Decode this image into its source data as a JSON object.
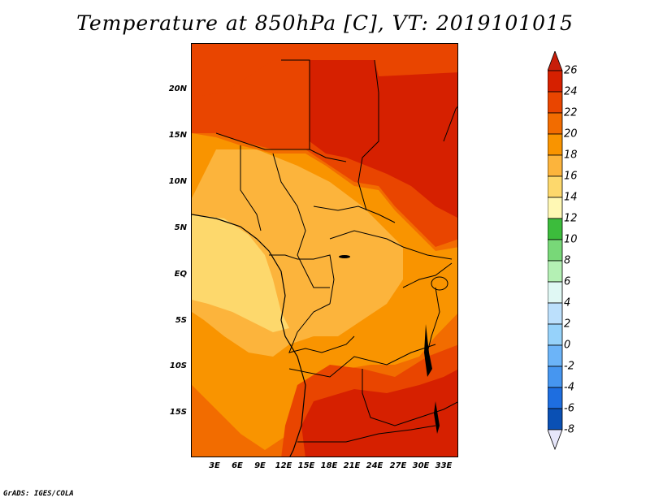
{
  "title": "Temperature at 850hPa [C], VT: 2019101015",
  "credit": "GrADS: IGES/COLA",
  "map": {
    "lat_labels": [
      "20N",
      "15N",
      "10N",
      "5N",
      "EQ",
      "5S",
      "10S",
      "15S"
    ],
    "lon_labels": [
      "3E",
      "6E",
      "9E",
      "12E",
      "15E",
      "18E",
      "21E",
      "24E",
      "27E",
      "30E",
      "33E"
    ],
    "lat_range": [
      -20,
      25
    ],
    "lon_range": [
      0,
      35
    ]
  },
  "colorbar": {
    "levels": [
      "26",
      "24",
      "22",
      "20",
      "18",
      "16",
      "14",
      "12",
      "10",
      "8",
      "6",
      "4",
      "2",
      "0",
      "-2",
      "-4",
      "-6",
      "-8"
    ],
    "colors": [
      "#d62000",
      "#e94500",
      "#f26c00",
      "#f99400",
      "#fcb43c",
      "#fdd86c",
      "#fff8b4",
      "#3cbc3c",
      "#78d878",
      "#b4f0b4",
      "#e0f8f4",
      "#bce0fc",
      "#96d2fa",
      "#6cb4f8",
      "#4696f0",
      "#1e6ee0",
      "#0a50b4",
      "#0a1e78"
    ],
    "top_arrow_color": "#c81e0a",
    "bottom_arrow_color": "#e6e6fa"
  }
}
